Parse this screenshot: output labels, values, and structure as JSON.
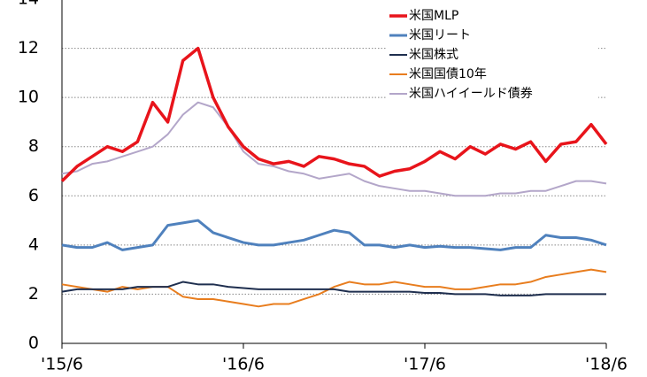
{
  "chart_data": {
    "type": "line",
    "x": [
      "'15/6",
      null,
      null,
      null,
      null,
      null,
      null,
      null,
      null,
      null,
      null,
      null,
      "'16/6",
      null,
      null,
      null,
      null,
      null,
      null,
      null,
      null,
      null,
      null,
      null,
      "'17/6",
      null,
      null,
      null,
      null,
      null,
      null,
      null,
      null,
      null,
      null,
      null,
      "'18/6"
    ],
    "series": [
      {
        "name": "米国MLP",
        "color": "#e8141b",
        "width": 3.5,
        "values": [
          6.6,
          7.2,
          7.6,
          8.0,
          7.8,
          8.2,
          9.8,
          9.0,
          11.5,
          12.0,
          10.0,
          8.8,
          8.0,
          7.5,
          7.3,
          7.4,
          7.2,
          7.6,
          7.5,
          7.3,
          7.2,
          6.8,
          7.0,
          7.1,
          7.4,
          7.8,
          7.5,
          8.0,
          7.7,
          8.1,
          7.9,
          8.2,
          7.4,
          8.1,
          8.2,
          8.9,
          8.1
        ]
      },
      {
        "name": "米国リート",
        "color": "#4f81bd",
        "width": 3,
        "values": [
          4.0,
          3.9,
          3.9,
          4.1,
          3.8,
          3.9,
          4.0,
          4.8,
          4.9,
          5.0,
          4.5,
          4.3,
          4.1,
          4.0,
          4.0,
          4.1,
          4.2,
          4.4,
          4.6,
          4.5,
          4.0,
          4.0,
          3.9,
          4.0,
          3.9,
          3.95,
          3.9,
          3.9,
          3.85,
          3.8,
          3.9,
          3.9,
          4.4,
          4.3,
          4.3,
          4.2,
          4.0
        ]
      },
      {
        "name": "米国株式",
        "color": "#1f2f4f",
        "width": 2,
        "values": [
          2.1,
          2.2,
          2.2,
          2.2,
          2.2,
          2.3,
          2.3,
          2.3,
          2.5,
          2.4,
          2.4,
          2.3,
          2.25,
          2.2,
          2.2,
          2.2,
          2.2,
          2.2,
          2.2,
          2.1,
          2.1,
          2.1,
          2.1,
          2.1,
          2.05,
          2.05,
          2.0,
          2.0,
          2.0,
          1.95,
          1.95,
          1.95,
          2.0,
          2.0,
          2.0,
          2.0,
          2.0
        ]
      },
      {
        "name": "米国国債10年",
        "color": "#e87d1e",
        "width": 2,
        "values": [
          2.4,
          2.3,
          2.2,
          2.1,
          2.3,
          2.2,
          2.3,
          2.3,
          1.9,
          1.8,
          1.8,
          1.7,
          1.6,
          1.5,
          1.6,
          1.6,
          1.8,
          2.0,
          2.3,
          2.5,
          2.4,
          2.4,
          2.5,
          2.4,
          2.3,
          2.3,
          2.2,
          2.2,
          2.3,
          2.4,
          2.4,
          2.5,
          2.7,
          2.8,
          2.9,
          3.0,
          2.9
        ]
      },
      {
        "name": "米国ハイイールド債券",
        "color": "#b3a6c9",
        "width": 2,
        "values": [
          6.9,
          7.0,
          7.3,
          7.4,
          7.6,
          7.8,
          8.0,
          8.5,
          9.3,
          9.8,
          9.6,
          8.8,
          7.8,
          7.3,
          7.2,
          7.0,
          6.9,
          6.7,
          6.8,
          6.9,
          6.6,
          6.4,
          6.3,
          6.2,
          6.2,
          6.1,
          6.0,
          6.0,
          6.0,
          6.1,
          6.1,
          6.2,
          6.2,
          6.4,
          6.6,
          6.6,
          6.5
        ]
      }
    ],
    "ylim": [
      0,
      14
    ],
    "yticks": [
      0,
      2,
      4,
      6,
      8,
      10,
      12,
      14
    ],
    "grid": true,
    "legend": "upper right"
  }
}
